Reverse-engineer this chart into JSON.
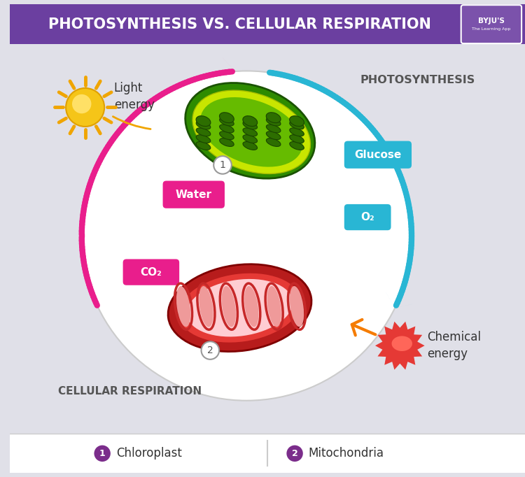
{
  "title": "PHOTOSYNTHESIS VS. CELLULAR RESPIRATION",
  "title_bg": "#6b3fa0",
  "title_color": "#ffffff",
  "bg_color": "#e0e0e8",
  "circle_color": "#ffffff",
  "circle_edge": "#cccccc",
  "photosynthesis_label": "PHOTOSYNTHESIS",
  "respiration_label": "CELLULAR RESPIRATION",
  "light_energy_label": "Light\nenergy",
  "water_label": "Water",
  "co2_label": "CO₂",
  "glucose_label": "Glucose",
  "o2_label": "O₂",
  "chemical_energy_label": "Chemical\nenergy",
  "chloroplast_label": "Chloroplast",
  "mitochondria_label": "Mitochondria",
  "pink_color": "#e91e8c",
  "blue_color": "#29b6d4",
  "orange_color": "#f57c00",
  "legend_dot_color": "#7b2d8b",
  "footer_bg": "#ffffff",
  "sun_color": "#f5c518",
  "sun_ray_color": "#f0a500",
  "byju_bg": "#7b52ab"
}
